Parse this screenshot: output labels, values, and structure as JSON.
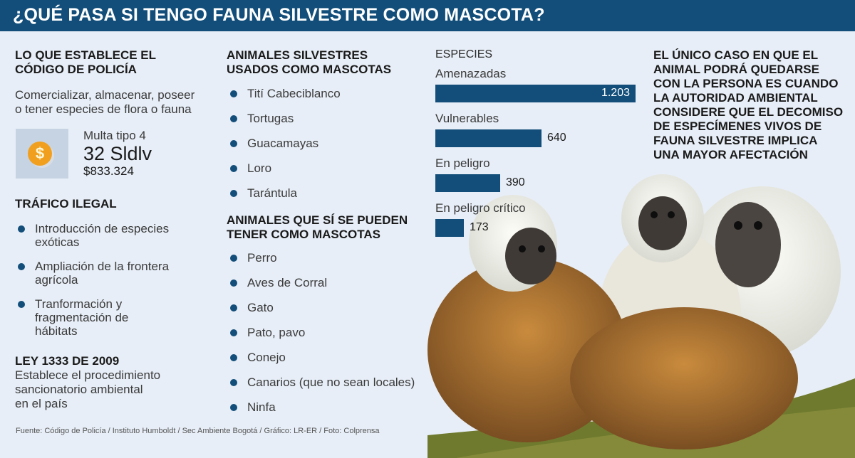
{
  "header": {
    "title": "¿QUÉ PASA SI TENGO FAUNA SILVESTRE COMO MASCOTA?"
  },
  "codigo": {
    "title_line1": "LO QUE ESTABLECE EL",
    "title_line2": "CÓDIGO DE POLICÍA",
    "text_line1": "Comercializar, almacenar, poseer",
    "text_line2": "o tener especies de flora o fauna",
    "fine_type": "Multa tipo 4",
    "fine_amount": "32 Sldlv",
    "fine_value": "$833.324",
    "icon": "coin-dollar-icon"
  },
  "trafico": {
    "title": "TRÁFICO ILEGAL",
    "items": [
      {
        "l1": "Introducción de especies",
        "l2": "exóticas",
        "l3": ""
      },
      {
        "l1": "Ampliación de la frontera",
        "l2": "agrícola",
        "l3": ""
      },
      {
        "l1": "Tranformación y",
        "l2": "fragmentación de",
        "l3": "hábitats"
      }
    ]
  },
  "ley": {
    "title": "LEY 1333 DE 2009",
    "line1": "Establece el procedimiento",
    "line2": "sancionatorio ambiental",
    "line3": "en el país"
  },
  "silvestres": {
    "title_line1": "ANIMALES SILVESTRES",
    "title_line2": "USADOS COMO MASCOTAS",
    "items": [
      "Tití Cabeciblanco",
      "Tortugas",
      "Guacamayas",
      "Loro",
      "Tarántula"
    ]
  },
  "permitidos": {
    "title_line1": "ANIMALES QUE SÍ SE PUEDEN",
    "title_line2": "TENER COMO MASCOTAS",
    "items": [
      "Perro",
      "Aves de Corral",
      "Gato",
      "Pato, pavo",
      "Conejo",
      "Canarios (que no sean locales)",
      "Ninfa"
    ]
  },
  "chart_data": {
    "type": "bar",
    "title": "ESPECIES",
    "categories": [
      "Amenazadas",
      "Vulnerables",
      "En peligro",
      "En peligro crítico"
    ],
    "values": [
      1203,
      640,
      390,
      173
    ],
    "value_labels": [
      "1.203",
      "640",
      "390",
      "173"
    ],
    "bar_color": "#124e79"
  },
  "quote": {
    "lines": [
      "EL ÚNICO CASO EN QUE EL",
      "ANIMAL PODRÁ QUEDARSE",
      "CON LA PERSONA ES CUANDO",
      "LA AUTORIDAD AMBIENTAL",
      "CONSIDERE QUE EL DECOMISO",
      "DE ESPECÍMENES VIVOS DE",
      "FAUNA SILVESTRE IMPLICA",
      "UNA MAYOR AFECTACIÓN"
    ]
  },
  "source": "Fuente: Código de Policía / Instituto Humboldt / Sec Ambiente Bogotá / Gráfico: LR-ER / Foto: Colprensa",
  "colors": {
    "primary": "#124e79",
    "background": "#e7eef7",
    "coin": "#f0a01e"
  }
}
